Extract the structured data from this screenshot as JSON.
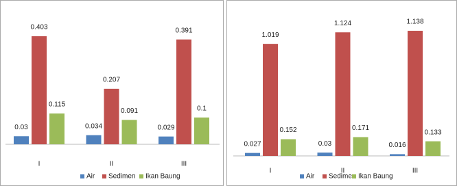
{
  "chart_data": [
    {
      "type": "bar",
      "categories": [
        "I",
        "II",
        "III"
      ],
      "series": [
        {
          "name": "Air",
          "color": "#4f81bd",
          "values": [
            0.03,
            0.034,
            0.029
          ]
        },
        {
          "name": "Sedimen",
          "color": "#c0504d",
          "values": [
            0.403,
            0.207,
            0.391
          ]
        },
        {
          "name": "Ikan Baung",
          "color": "#9bbb59",
          "values": [
            0.115,
            0.091,
            0.1
          ]
        }
      ]
    },
    {
      "type": "bar",
      "categories": [
        "I",
        "II",
        "III"
      ],
      "series": [
        {
          "name": "Air",
          "color": "#4f81bd",
          "values": [
            0.027,
            0.03,
            0.016
          ]
        },
        {
          "name": "Sedimen",
          "color": "#c0504d",
          "values": [
            1.019,
            1.124,
            1.138
          ]
        },
        {
          "name": "Ikan Baung",
          "color": "#9bbb59",
          "values": [
            0.152,
            0.171,
            0.133
          ]
        }
      ]
    }
  ]
}
